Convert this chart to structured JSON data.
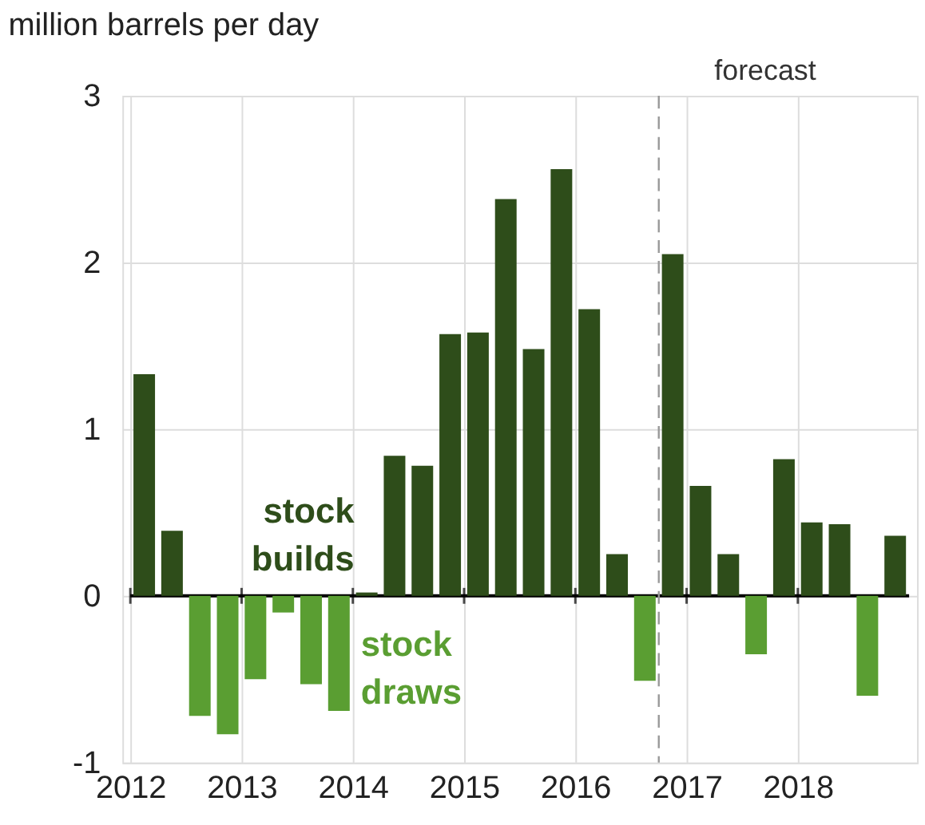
{
  "chart_data": {
    "type": "bar",
    "title": "million barrels per day",
    "x": [
      2012.125,
      2012.375,
      2012.625,
      2012.875,
      2013.125,
      2013.375,
      2013.625,
      2013.875,
      2014.125,
      2014.375,
      2014.625,
      2014.875,
      2015.125,
      2015.375,
      2015.625,
      2015.875,
      2016.125,
      2016.375,
      2016.625,
      2016.875,
      2017.125,
      2017.375,
      2017.625,
      2017.875,
      2018.125,
      2018.375,
      2018.625,
      2018.875
    ],
    "values": [
      1.33,
      0.39,
      -0.72,
      -0.83,
      -0.5,
      -0.1,
      -0.53,
      -0.69,
      0.02,
      0.84,
      0.78,
      1.57,
      1.58,
      2.38,
      1.48,
      2.56,
      1.72,
      0.25,
      -0.51,
      2.05,
      0.66,
      0.25,
      -0.35,
      0.82,
      0.44,
      0.43,
      -0.6,
      0.36
    ],
    "colors": [
      "#2e4d1a",
      "#2e4d1a",
      "#5a9e32",
      "#5a9e32",
      "#5a9e32",
      "#5a9e32",
      "#5a9e32",
      "#5a9e32",
      "#2e4d1a",
      "#2e4d1a",
      "#2e4d1a",
      "#2e4d1a",
      "#2e4d1a",
      "#2e4d1a",
      "#2e4d1a",
      "#2e4d1a",
      "#2e4d1a",
      "#2e4d1a",
      "#5a9e32",
      "#2e4d1a",
      "#2e4d1a",
      "#2e4d1a",
      "#5a9e32",
      "#2e4d1a",
      "#2e4d1a",
      "#2e4d1a",
      "#5a9e32",
      "#2e4d1a"
    ],
    "xlim": [
      2012,
      2019
    ],
    "xticks": [
      2012,
      2013,
      2014,
      2015,
      2016,
      2017,
      2018
    ],
    "ylim": [
      -1,
      3
    ],
    "yticks": [
      -1,
      0,
      1,
      2,
      3
    ],
    "grid": true,
    "ref_lines": [
      {
        "axis": "x",
        "value": 2016.75,
        "label": "forecast",
        "color": "#999999",
        "line_style": "dashed"
      }
    ],
    "annotations": [
      "stock builds",
      "stock draws"
    ]
  }
}
